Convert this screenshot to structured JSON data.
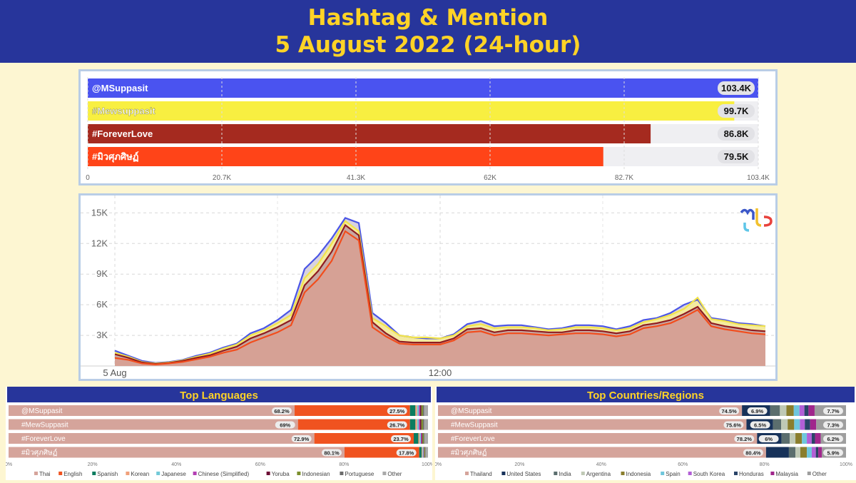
{
  "header": {
    "title_line1": "Hashtag & Mention",
    "title_line2": "5 August 2022 (24-hour)"
  },
  "chart_data": [
    {
      "type": "bar",
      "orientation": "horizontal",
      "categories": [
        "@MSuppasit",
        "#Mewsuppasit",
        "#ForeverLove",
        "#มิวศุภศิษฏ์"
      ],
      "values": [
        103.4,
        99.7,
        86.8,
        79.5
      ],
      "value_labels": [
        "103.4K",
        "99.7K",
        "86.8K",
        "79.5K"
      ],
      "colors": [
        "#4a53f0",
        "#f8ef41",
        "#a52a1f",
        "#ff4418"
      ],
      "xticks": [
        "0",
        "20.7K",
        "41.3K",
        "62K",
        "82.7K",
        "103.4K"
      ],
      "xlim": [
        0,
        103.4
      ],
      "units": "K"
    },
    {
      "type": "area",
      "x": [
        0,
        0.5,
        1,
        1.5,
        2,
        2.5,
        3,
        3.5,
        4,
        4.5,
        5,
        5.5,
        6,
        6.5,
        7,
        7.5,
        8,
        8.5,
        9,
        9.5,
        10,
        10.5,
        11,
        11.5,
        12,
        12.5,
        13,
        13.5,
        14,
        14.5,
        15,
        15.5,
        16,
        16.5,
        17,
        17.5,
        18,
        18.5,
        19,
        19.5,
        20,
        20.5,
        21,
        21.5,
        22,
        22.5,
        23,
        23.5,
        24
      ],
      "xticks": [
        "5 Aug",
        "12:00"
      ],
      "yticks": [
        "3K",
        "6K",
        "9K",
        "12K",
        "15K"
      ],
      "ylim": [
        0,
        16000
      ],
      "grid": true,
      "series": [
        {
          "name": "@MSuppasit",
          "color": "#4a55e6",
          "values": [
            1500,
            1000,
            500,
            300,
            400,
            600,
            1000,
            1300,
            1800,
            2200,
            3200,
            3700,
            4500,
            5500,
            9500,
            10800,
            12500,
            14500,
            14000,
            5200,
            4200,
            3000,
            2800,
            2700,
            2700,
            3100,
            4100,
            4400,
            3900,
            4000,
            4000,
            3800,
            3600,
            3700,
            4000,
            4000,
            3900,
            3600,
            3900,
            4500,
            4700,
            5200,
            6000,
            6500,
            4700,
            4500,
            4200,
            4100,
            3900
          ]
        },
        {
          "name": "#Mewsuppasit",
          "color": "#f2e44a",
          "values": [
            1300,
            900,
            400,
            250,
            350,
            550,
            900,
            1200,
            1700,
            2100,
            3000,
            3500,
            4200,
            5000,
            8600,
            10000,
            12000,
            14200,
            13200,
            4700,
            3900,
            3000,
            2800,
            2800,
            2700,
            3000,
            3900,
            4100,
            3700,
            3800,
            3800,
            3700,
            3500,
            3600,
            3800,
            3800,
            3700,
            3500,
            3700,
            4300,
            4600,
            5000,
            5600,
            6700,
            4600,
            4400,
            4100,
            4000,
            3900
          ]
        },
        {
          "name": "#ForeverLove",
          "color": "#8f1c20",
          "values": [
            1150,
            800,
            350,
            200,
            300,
            500,
            800,
            1050,
            1500,
            1900,
            2700,
            3200,
            3800,
            4500,
            7900,
            9300,
            11200,
            13800,
            12800,
            4300,
            3200,
            2400,
            2300,
            2300,
            2300,
            2700,
            3600,
            3700,
            3300,
            3500,
            3500,
            3400,
            3300,
            3300,
            3500,
            3500,
            3400,
            3200,
            3400,
            4000,
            4200,
            4500,
            5100,
            5800,
            4200,
            3900,
            3700,
            3500,
            3400
          ]
        },
        {
          "name": "#มิวศุภศิษฏ์",
          "color": "#f24d1c",
          "values": [
            800,
            600,
            250,
            150,
            250,
            400,
            650,
            900,
            1300,
            1600,
            2300,
            2800,
            3300,
            4000,
            7200,
            8500,
            10300,
            13200,
            12300,
            3800,
            2900,
            2200,
            2100,
            2100,
            2100,
            2500,
            3300,
            3400,
            3000,
            3200,
            3200,
            3100,
            3000,
            3100,
            3200,
            3200,
            3100,
            2900,
            3100,
            3700,
            3900,
            4200,
            4800,
            5500,
            3900,
            3600,
            3400,
            3200,
            3100
          ]
        }
      ]
    },
    {
      "type": "bar",
      "stacked": true,
      "orientation": "horizontal",
      "title": "Top Languages",
      "categories": [
        "@MSuppasit",
        "#MewSuppasit",
        "#ForeverLove",
        "#มิวศุภศิษฏ์"
      ],
      "segment_names": [
        "Thai",
        "English",
        "Spanish",
        "Korean",
        "Japanese",
        "Chinese (Simplified)",
        "Yoruba",
        "Indonesian",
        "Portuguese",
        "Other"
      ],
      "segment_colors": [
        "#d5a49b",
        "#f05320",
        "#0a7c5f",
        "#f0a07a",
        "#72c9d8",
        "#b43fb4",
        "#6d0f35",
        "#7c8f2d",
        "#6c6c6c",
        "#a9a9a9"
      ],
      "values": [
        [
          68.2,
          27.5,
          1.3,
          0.4,
          0.4,
          0.3,
          0.3,
          0.4,
          0.3,
          0.9
        ],
        [
          69,
          26.7,
          1.3,
          0.4,
          0.4,
          0.3,
          0.3,
          0.4,
          0.3,
          0.9
        ],
        [
          72.9,
          23.7,
          1.1,
          0.3,
          0.3,
          0.2,
          0.2,
          0.3,
          0.2,
          0.8
        ],
        [
          80.1,
          17.8,
          0.6,
          0.2,
          0.2,
          0.1,
          0.1,
          0.2,
          0.1,
          0.6
        ]
      ],
      "value_labels": [
        [
          "68.2%",
          "27.5%"
        ],
        [
          "69%",
          "26.7%"
        ],
        [
          "72.9%",
          "23.7%"
        ],
        [
          "80.1%",
          "17.8%"
        ]
      ],
      "xticks": [
        "0%",
        "20%",
        "40%",
        "60%",
        "80%",
        "100%"
      ],
      "xlim": [
        0,
        100
      ]
    },
    {
      "type": "bar",
      "stacked": true,
      "orientation": "horizontal",
      "title": "Top Countries/Regions",
      "categories": [
        "@MSuppasit",
        "#MewSuppasit",
        "#ForeverLove",
        "#มิวศุภศิษฏ์"
      ],
      "segment_names": [
        "Thailand",
        "United States",
        "India",
        "Argentina",
        "Indonesia",
        "Spain",
        "South Korea",
        "Honduras",
        "Malaysia",
        "Other"
      ],
      "segment_colors": [
        "#d5a49b",
        "#17325a",
        "#5b6e6e",
        "#bfc9b5",
        "#8a7e2d",
        "#6ec6dc",
        "#b25fd6",
        "#2a4468",
        "#a0268c",
        "#9e9e9e"
      ],
      "values": [
        [
          74.5,
          6.9,
          2.4,
          1.6,
          1.8,
          1.4,
          1.2,
          1.0,
          1.5,
          7.7
        ],
        [
          75.6,
          6.5,
          2.0,
          1.6,
          1.6,
          1.4,
          1.2,
          1.3,
          1.5,
          7.3
        ],
        [
          78.2,
          6,
          2.0,
          1.4,
          1.6,
          1.2,
          1.2,
          0.8,
          1.4,
          6.2
        ],
        [
          80.4,
          5.6,
          1.6,
          1.2,
          1.6,
          1.2,
          1.0,
          0.6,
          0.9,
          5.9
        ]
      ],
      "value_labels": [
        [
          "74.5%",
          "6.9%",
          "7.7%"
        ],
        [
          "75.6%",
          "6.5%",
          "7.3%"
        ],
        [
          "78.2%",
          "6%",
          "6.2%"
        ],
        [
          "80.4%",
          "",
          "5.9%"
        ]
      ],
      "xticks": [
        "0%",
        "20%",
        "40%",
        "60%",
        "80%",
        "100%"
      ],
      "xlim": [
        0,
        100
      ]
    }
  ],
  "logo": {
    "name": "mts-logo"
  }
}
